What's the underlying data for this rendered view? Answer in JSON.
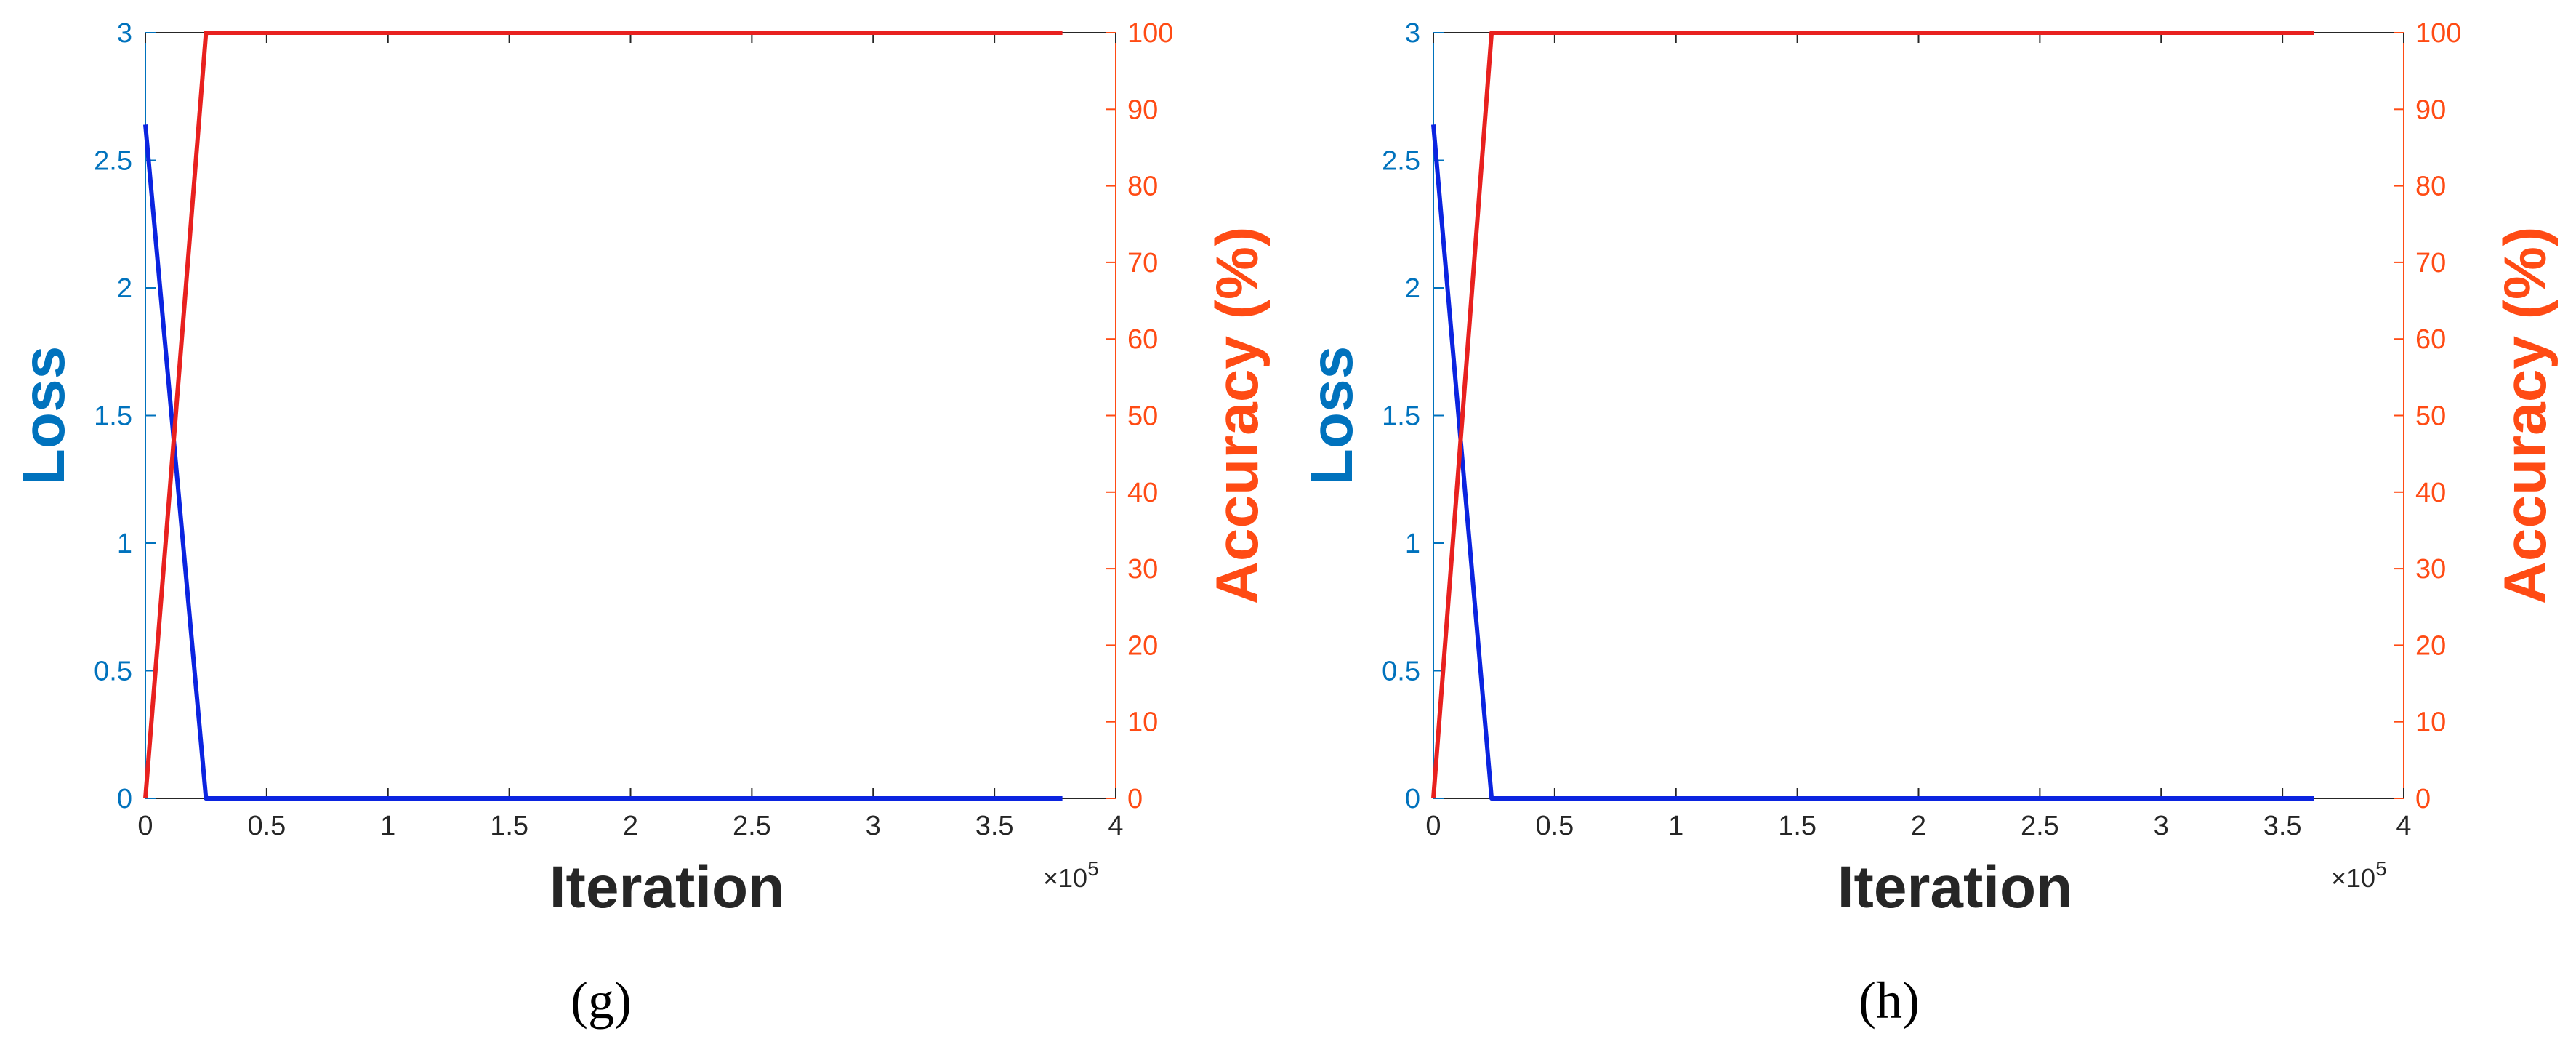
{
  "colors": {
    "loss": "#0072BD",
    "accuracy": "#FF4B14",
    "loss_line": "#0B24E0",
    "accuracy_line": "#E8211F",
    "axis_box": "#262626"
  },
  "chart_data": [
    {
      "type": "line",
      "panel_label": "(g)",
      "xlabel": "Iteration",
      "xlim": [
        0,
        4
      ],
      "x_multiplier": "×10^5",
      "x_ticks": [
        "0",
        "0.5",
        "1",
        "1.5",
        "2",
        "2.5",
        "3",
        "3.5",
        "4"
      ],
      "y_left": {
        "label": "Loss",
        "lim": [
          0,
          3
        ],
        "ticks": [
          "0",
          "0.5",
          "1",
          "1.5",
          "2",
          "2.5",
          "3"
        ]
      },
      "y_right": {
        "label": "Accuracy (%)",
        "lim": [
          0,
          100
        ],
        "ticks": [
          "0",
          "10",
          "20",
          "30",
          "40",
          "50",
          "60",
          "70",
          "80",
          "90",
          "100"
        ]
      },
      "grid": false,
      "series": [
        {
          "axis": "left",
          "x": [
            0,
            0.25,
            3.78
          ],
          "y": [
            2.64,
            0,
            0
          ]
        },
        {
          "axis": "right",
          "x": [
            0,
            0.25,
            3.78
          ],
          "y": [
            0,
            100,
            100
          ]
        }
      ]
    },
    {
      "type": "line",
      "panel_label": "(h)",
      "xlabel": "Iteration",
      "xlim": [
        0,
        4
      ],
      "x_multiplier": "×10^5",
      "x_ticks": [
        "0",
        "0.5",
        "1",
        "1.5",
        "2",
        "2.5",
        "3",
        "3.5",
        "4"
      ],
      "y_left": {
        "label": "Loss",
        "lim": [
          0,
          3
        ],
        "ticks": [
          "0",
          "0.5",
          "1",
          "1.5",
          "2",
          "2.5",
          "3"
        ]
      },
      "y_right": {
        "label": "Accuracy (%)",
        "lim": [
          0,
          100
        ],
        "ticks": [
          "0",
          "10",
          "20",
          "30",
          "40",
          "50",
          "60",
          "70",
          "80",
          "90",
          "100"
        ]
      },
      "grid": false,
      "series": [
        {
          "axis": "left",
          "x": [
            0,
            0.24,
            3.63
          ],
          "y": [
            2.64,
            0,
            0
          ]
        },
        {
          "axis": "right",
          "x": [
            0,
            0.24,
            3.63
          ],
          "y": [
            0,
            100,
            100
          ]
        }
      ]
    }
  ]
}
